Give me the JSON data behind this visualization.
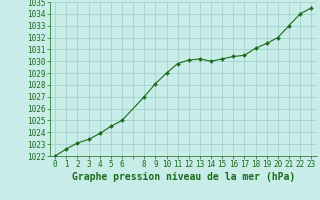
{
  "x": [
    0,
    1,
    2,
    3,
    4,
    5,
    6,
    8,
    9,
    10,
    11,
    12,
    13,
    14,
    15,
    16,
    17,
    18,
    19,
    20,
    21,
    22,
    23
  ],
  "y": [
    1022.0,
    1022.6,
    1023.1,
    1023.4,
    1023.9,
    1024.5,
    1025.0,
    1027.0,
    1028.1,
    1029.0,
    1029.8,
    1030.1,
    1030.2,
    1030.0,
    1030.2,
    1030.4,
    1030.5,
    1031.1,
    1031.5,
    1032.0,
    1033.0,
    1034.0,
    1034.5
  ],
  "x_tick_labels": [
    "0",
    "1",
    "2",
    "3",
    "4",
    "5",
    "6",
    "",
    "8",
    "9",
    "10",
    "11",
    "12",
    "13",
    "14",
    "15",
    "16",
    "17",
    "18",
    "19",
    "20",
    "21",
    "22",
    "23"
  ],
  "x_tick_positions": [
    0,
    1,
    2,
    3,
    4,
    5,
    6,
    7,
    8,
    9,
    10,
    11,
    12,
    13,
    14,
    15,
    16,
    17,
    18,
    19,
    20,
    21,
    22,
    23
  ],
  "ylim": [
    1022,
    1035
  ],
  "yticks": [
    1022,
    1023,
    1024,
    1025,
    1026,
    1027,
    1028,
    1029,
    1030,
    1031,
    1032,
    1033,
    1034,
    1035
  ],
  "line_color": "#1a6b1a",
  "marker_color": "#1a6b1a",
  "bg_plot": "#c8ece8",
  "bg_fig": "#c8ece8",
  "grid_color": "#a0d4ce",
  "xlabel": "Graphe pression niveau de la mer (hPa)",
  "xlabel_color": "#1a6b1a",
  "tick_color": "#1a6b1a",
  "tick_fontsize": 5.5,
  "xlabel_fontsize": 7.0,
  "xlabel_bold": true
}
